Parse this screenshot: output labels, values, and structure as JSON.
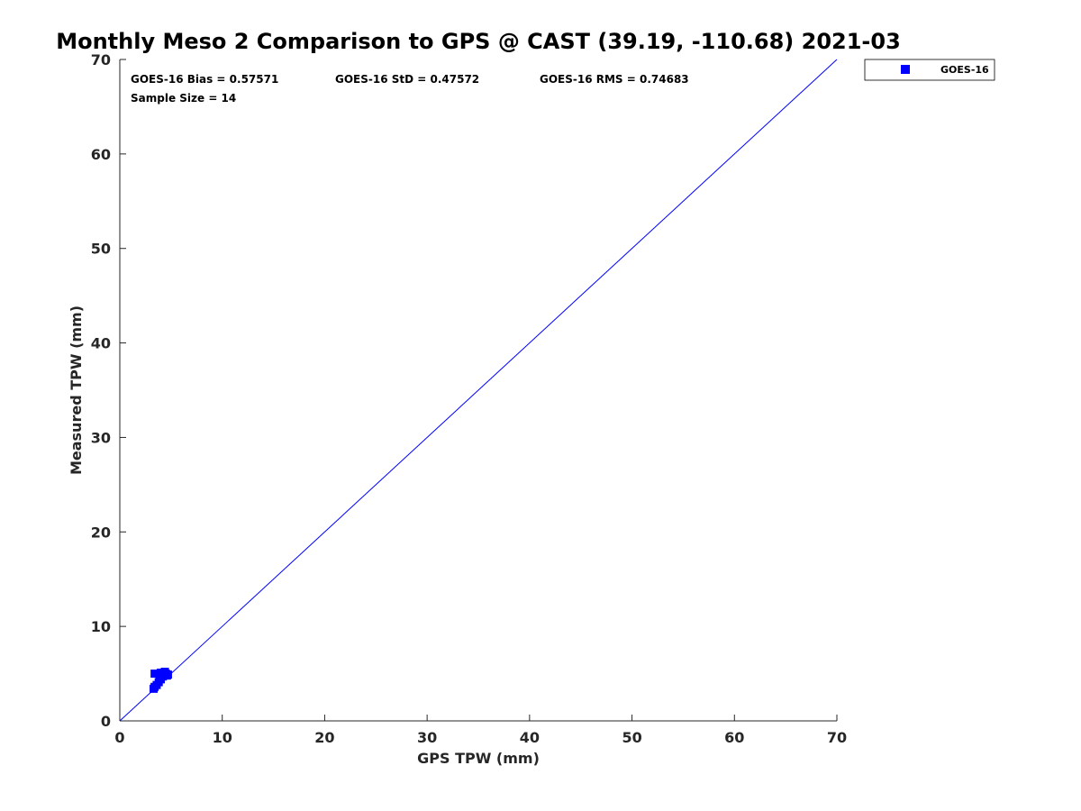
{
  "chart_data": {
    "type": "scatter",
    "title": "Monthly Meso 2 Comparison to GPS @ CAST (39.19, -110.68) 2021-03",
    "xlabel": "GPS TPW (mm)",
    "ylabel": "Measured TPW (mm)",
    "xlim": [
      0,
      70
    ],
    "ylim": [
      0,
      70
    ],
    "xticks": [
      0,
      10,
      20,
      30,
      40,
      50,
      60,
      70
    ],
    "yticks": [
      0,
      10,
      20,
      30,
      40,
      50,
      60,
      70
    ],
    "grid": false,
    "legend_position": "outside-top-right",
    "reference_line": {
      "from": [
        0,
        0
      ],
      "to": [
        70,
        70
      ],
      "color": "#0000ff"
    },
    "stats": {
      "bias": "GOES-16 Bias = 0.57571",
      "std": "GOES-16 StD = 0.47572",
      "rms": "GOES-16 RMS = 0.74683",
      "sample": "Sample Size = 14"
    },
    "series": [
      {
        "name": "GOES-16",
        "color": "#0000ff",
        "marker": "square",
        "points": [
          [
            3.3,
            3.4
          ],
          [
            3.4,
            3.6
          ],
          [
            3.6,
            3.8
          ],
          [
            3.8,
            4.1
          ],
          [
            4.0,
            4.4
          ],
          [
            4.2,
            4.7
          ],
          [
            4.3,
            4.9
          ],
          [
            4.5,
            5.0
          ],
          [
            4.6,
            4.8
          ],
          [
            4.4,
            5.2
          ],
          [
            4.0,
            5.1
          ],
          [
            3.4,
            5.0
          ],
          [
            3.9,
            4.6
          ],
          [
            4.7,
            4.9
          ]
        ]
      }
    ]
  }
}
